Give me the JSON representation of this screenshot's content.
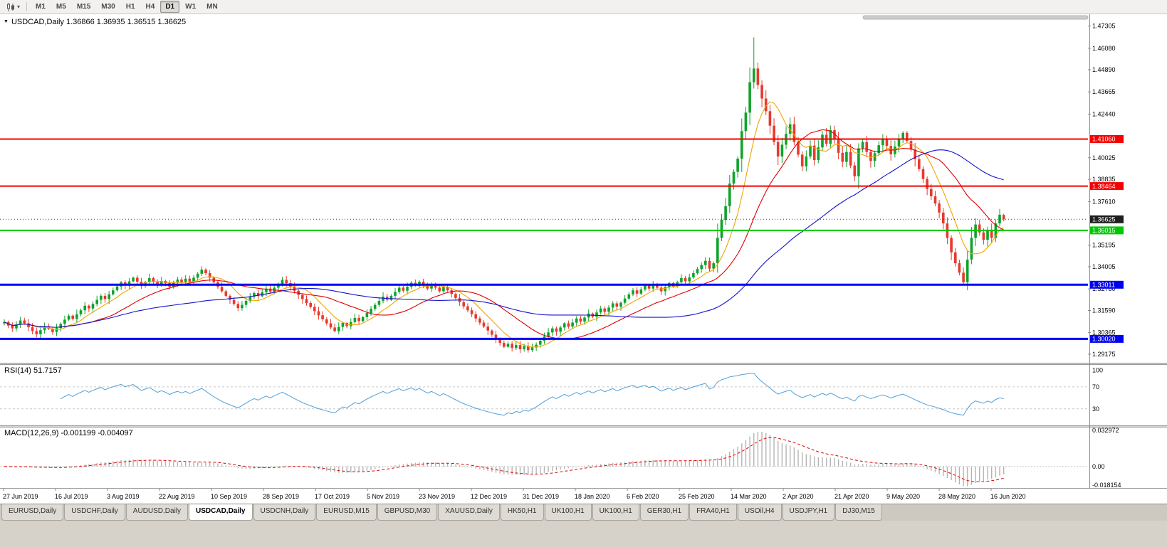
{
  "toolbar": {
    "timeframes": [
      "M1",
      "M5",
      "M15",
      "M30",
      "H1",
      "H4",
      "D1",
      "W1",
      "MN"
    ],
    "active_timeframe": "D1",
    "chart_type_icon": "candlestick-chart-icon",
    "dropdown_icon": "caret-down-icon"
  },
  "chart": {
    "symbol": "USDCAD",
    "period": "Daily",
    "header": "USDCAD,Daily 1.36866 1.36935 1.36515 1.36625",
    "open": "1.36866",
    "high": "1.36935",
    "low": "1.36515",
    "close": "1.36625"
  },
  "indicators": {
    "rsi": {
      "label": "RSI(14) 51.7157"
    },
    "macd": {
      "label": "MACD(12,26,9) -0.001199 -0.004097",
      "scale": [
        "0.032972",
        "0.00",
        "-0.018154"
      ]
    }
  },
  "colors": {
    "bull": "#0fa32b",
    "bear": "#e8392d",
    "rsi": "#4f9fd8",
    "macd_hist": "#b4b4b4",
    "macd_signal": "#e00000",
    "price_badge": "#1f1f1f",
    "grid_dash": "#c8c8c8"
  },
  "chart_data": {
    "type": "candlestick",
    "symbol": "USDCAD",
    "timeframe": "Daily",
    "current_bar": {
      "open": 1.36866,
      "high": 1.36935,
      "low": 1.36515,
      "close": 1.36625
    },
    "price_range": [
      1.287,
      1.478
    ],
    "y_axis_ticks": [
      1.47305,
      1.4608,
      1.4489,
      1.43665,
      1.4244,
      1.40025,
      1.38835,
      1.3761,
      1.35195,
      1.34005,
      1.3278,
      1.3159,
      1.30365,
      1.29175
    ],
    "hlines": [
      {
        "price": 1.4106,
        "label": "1.41060",
        "color": "#f40000",
        "width": 2
      },
      {
        "price": 1.38464,
        "label": "1.38464",
        "color": "#f40000",
        "width": 2
      },
      {
        "price": 1.36015,
        "label": "1.36015",
        "color": "#00c800",
        "width": 2
      },
      {
        "price": 1.33011,
        "label": "1.33011",
        "color": "#0000f0",
        "width": 3
      },
      {
        "price": 1.3002,
        "label": "1.30020",
        "color": "#0000f0",
        "width": 3
      }
    ],
    "current_price": {
      "value": 1.36625,
      "label": "1.36625"
    },
    "x_labels": [
      "27 Jun 2019",
      "16 Jul 2019",
      "3 Aug 2019",
      "22 Aug 2019",
      "10 Sep 2019",
      "28 Sep 2019",
      "17 Oct 2019",
      "5 Nov 2019",
      "23 Nov 2019",
      "12 Dec 2019",
      "31 Dec 2019",
      "18 Jan 2020",
      "6 Feb 2020",
      "25 Feb 2020",
      "14 Mar 2020",
      "2 Apr 2020",
      "21 Apr 2020",
      "9 May 2020",
      "28 May 2020",
      "16 Jun 2020"
    ],
    "ma": [
      {
        "period": 8,
        "color": "#f0a500"
      },
      {
        "period": 21,
        "color": "#e00000"
      },
      {
        "period": 55,
        "color": "#1414cc"
      }
    ],
    "rsi": {
      "period": 14,
      "value": 51.7157,
      "levels": [
        100,
        70,
        30
      ],
      "scale_max": 110,
      "scale_min": 0
    },
    "macd": {
      "fast": 12,
      "slow": 26,
      "signal_period": 9,
      "value": -0.001199,
      "signal": -0.004097,
      "scale_max": 0.032972,
      "scale_min": -0.018154
    },
    "spike_high": 1.4668,
    "spike_low": 1.3301,
    "closes": [
      1.3095,
      1.3075,
      1.306,
      1.3082,
      1.3104,
      1.3088,
      1.3066,
      1.3045,
      1.3028,
      1.305,
      1.3072,
      1.3058,
      1.304,
      1.3062,
      1.3085,
      1.3108,
      1.313,
      1.3112,
      1.3138,
      1.316,
      1.3185,
      1.317,
      1.3195,
      1.3218,
      1.324,
      1.3222,
      1.3248,
      1.327,
      1.3292,
      1.3315,
      1.3298,
      1.332,
      1.334,
      1.3318,
      1.3295,
      1.3316,
      1.3338,
      1.332,
      1.33,
      1.3322,
      1.331,
      1.329,
      1.3312,
      1.333,
      1.3315,
      1.3335,
      1.3318,
      1.334,
      1.3362,
      1.3385,
      1.3365,
      1.334,
      1.3315,
      1.329,
      1.3265,
      1.324,
      1.3218,
      1.3195,
      1.3172,
      1.319,
      1.3212,
      1.3235,
      1.3255,
      1.3238,
      1.326,
      1.328,
      1.3262,
      1.3285,
      1.3305,
      1.3328,
      1.331,
      1.329,
      1.3268,
      1.3245,
      1.3222,
      1.32,
      1.3178,
      1.3155,
      1.3132,
      1.311,
      1.3088,
      1.3065,
      1.3045,
      1.3068,
      1.309,
      1.3072,
      1.3095,
      1.3118,
      1.31,
      1.3122,
      1.3145,
      1.3168,
      1.319,
      1.3212,
      1.3235,
      1.3218,
      1.324,
      1.3262,
      1.3285,
      1.3268,
      1.329,
      1.3312,
      1.3295,
      1.3318,
      1.33,
      1.328,
      1.3302,
      1.3285,
      1.3265,
      1.3288,
      1.327,
      1.325,
      1.3228,
      1.3205,
      1.3182,
      1.316,
      1.3138,
      1.3115,
      1.3092,
      1.307,
      1.3048,
      1.3025,
      1.3002,
      1.298,
      1.2958,
      1.2975,
      1.2952,
      1.2968,
      1.2945,
      1.2962,
      1.294,
      1.2955,
      1.297,
      1.2992,
      1.3015,
      1.3038,
      1.306,
      1.3042,
      1.3065,
      1.3088,
      1.307,
      1.3092,
      1.3115,
      1.3098,
      1.312,
      1.3142,
      1.3125,
      1.3148,
      1.317,
      1.3152,
      1.3175,
      1.3198,
      1.318,
      1.3202,
      1.3225,
      1.3248,
      1.327,
      1.3252,
      1.3275,
      1.3298,
      1.328,
      1.3302,
      1.3285,
      1.3265,
      1.3288,
      1.331,
      1.3292,
      1.3315,
      1.3338,
      1.332,
      1.3342,
      1.3365,
      1.3388,
      1.341,
      1.3433,
      1.339,
      1.342,
      1.356,
      1.366,
      1.3735,
      1.386,
      1.3925,
      1.3998,
      1.415,
      1.4252,
      1.442,
      1.4496,
      1.4405,
      1.433,
      1.426,
      1.418,
      1.409,
      1.401,
      1.4075,
      1.4135,
      1.4188,
      1.409,
      1.402,
      1.3955,
      1.401,
      1.407,
      1.399,
      1.406,
      1.413,
      1.408,
      1.4155,
      1.4105,
      1.403,
      1.398,
      1.4035,
      1.396,
      1.39,
      1.4055,
      1.409,
      1.4035,
      1.3985,
      1.4028,
      1.4072,
      1.411,
      1.4068,
      1.4022,
      1.4065,
      1.4108,
      1.414,
      1.4095,
      1.4048,
      1.3995,
      1.394,
      1.3885,
      1.383,
      1.379,
      1.375,
      1.37,
      1.364,
      1.356,
      1.348,
      1.342,
      1.3368,
      1.3315,
      1.344,
      1.356,
      1.3634,
      1.359,
      1.355,
      1.3605,
      1.356,
      1.364,
      1.3688,
      1.36625
    ]
  },
  "tabs": [
    {
      "label": "EURUSD,Daily",
      "active": false
    },
    {
      "label": "USDCHF,Daily",
      "active": false
    },
    {
      "label": "AUDUSD,Daily",
      "active": false
    },
    {
      "label": "USDCAD,Daily",
      "active": true
    },
    {
      "label": "USDCNH,Daily",
      "active": false
    },
    {
      "label": "EURUSD,M15",
      "active": false
    },
    {
      "label": "GBPUSD,M30",
      "active": false
    },
    {
      "label": "XAUUSD,Daily",
      "active": false
    },
    {
      "label": "HK50,H1",
      "active": false
    },
    {
      "label": "UK100,H1",
      "active": false
    },
    {
      "label": "UK100,H1",
      "active": false
    },
    {
      "label": "GER30,H1",
      "active": false
    },
    {
      "label": "FRA40,H1",
      "active": false
    },
    {
      "label": "USOil,H4",
      "active": false
    },
    {
      "label": "USDJPY,H1",
      "active": false
    },
    {
      "label": "DJ30,M15",
      "active": false
    }
  ]
}
